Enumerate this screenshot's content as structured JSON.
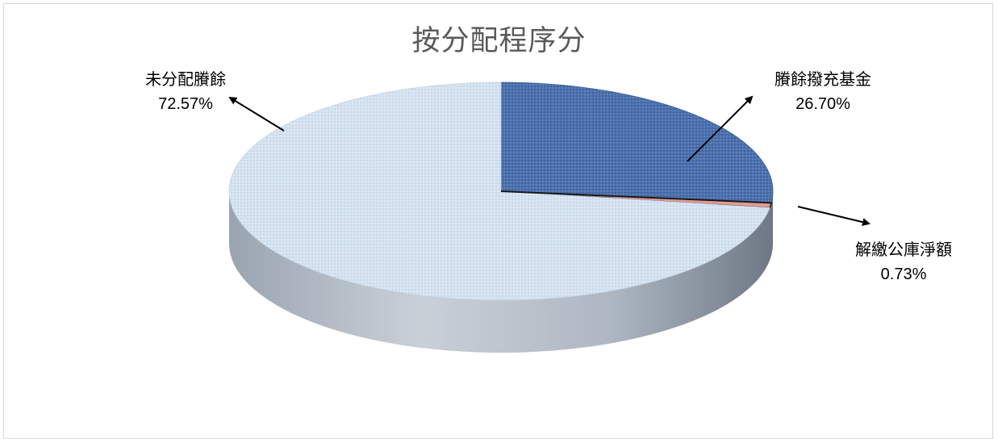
{
  "chart_data": {
    "type": "pie",
    "title": "按分配程序分",
    "slices": [
      {
        "label": "賸餘撥充基金",
        "value": 26.7,
        "display": "26.70%",
        "color": "#4a6fa8"
      },
      {
        "label": "解繳公庫淨額",
        "value": 0.73,
        "display": "0.73%",
        "color": "#e39a92"
      },
      {
        "label": "未分配賸餘",
        "value": 72.57,
        "display": "72.57%",
        "color": "#d6e3f0"
      }
    ],
    "side_color": "#b8c1cc",
    "three_d": true
  }
}
